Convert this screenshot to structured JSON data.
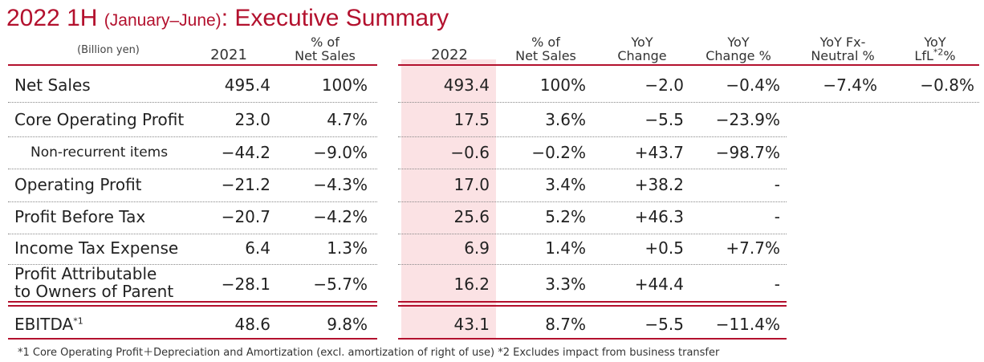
{
  "title": {
    "main": "2022 1H ",
    "sub": "(January–June)",
    "tail": ": Executive Summary"
  },
  "headers": {
    "unit": "(Billion yen)",
    "y2021": "2021",
    "pct2021_1": "% of",
    "pct2021_2": "Net Sales",
    "y2022": "2022",
    "pct2022_1": "% of",
    "pct2022_2": "Net Sales",
    "yoy_1": "YoY",
    "yoy_2": "Change",
    "yoypct_1": "YoY",
    "yoypct_2": "Change %",
    "fx_1": "YoY  Fx-",
    "fx_2": "Neutral %",
    "lfl_1": "YoY",
    "lfl_2a": "LfL",
    "lfl_sup": "*2",
    "lfl_2b": "%"
  },
  "rows": [
    {
      "label": "Net Sales",
      "v2021": "495.4",
      "p2021": "100%",
      "v2022": "493.4",
      "p2022": "100%",
      "yoy": "−2.0",
      "yoypct": "−0.4%",
      "fx": "−7.4%",
      "lfl": "−0.8%"
    },
    {
      "label": "Core Operating Profit",
      "v2021": "23.0",
      "p2021": "4.7%",
      "v2022": "17.5",
      "p2022": "3.6%",
      "yoy": "−5.5",
      "yoypct": "−23.9%"
    },
    {
      "label": "Non-recurrent items",
      "v2021": "−44.2",
      "p2021": "−9.0%",
      "v2022": "−0.6",
      "p2022": "−0.2%",
      "yoy": "+43.7",
      "yoypct": "−98.7%"
    },
    {
      "label": "Operating Profit",
      "v2021": "−21.2",
      "p2021": "−4.3%",
      "v2022": "17.0",
      "p2022": "3.4%",
      "yoy": "+38.2",
      "yoypct": "-"
    },
    {
      "label": "Profit Before Tax",
      "v2021": "−20.7",
      "p2021": "−4.2%",
      "v2022": "25.6",
      "p2022": "5.2%",
      "yoy": "+46.3",
      "yoypct": "-"
    },
    {
      "label": "Income Tax Expense",
      "v2021": "6.4",
      "p2021": "1.3%",
      "v2022": "6.9",
      "p2022": "1.4%",
      "yoy": "+0.5",
      "yoypct": "+7.7%"
    },
    {
      "label1": "Profit Attributable",
      "label2": "to Owners of Parent",
      "v2021": "−28.1",
      "p2021": "−5.7%",
      "v2022": "16.2",
      "p2022": "3.3%",
      "yoy": "+44.4",
      "yoypct": "-"
    },
    {
      "label": "EBITDA",
      "label_sup": "*1",
      "v2021": "48.6",
      "p2021": "9.8%",
      "v2022": "43.1",
      "p2022": "8.7%",
      "yoy": "−5.5",
      "yoypct": "−11.4%"
    }
  ],
  "footnote": "*1 Core Operating Profit＋Depreciation and Amortization (excl. amortization of right of use)   *2 Excludes impact from business transfer",
  "colors": {
    "accent": "#b3112e",
    "highlight": "#fbe2e4"
  }
}
